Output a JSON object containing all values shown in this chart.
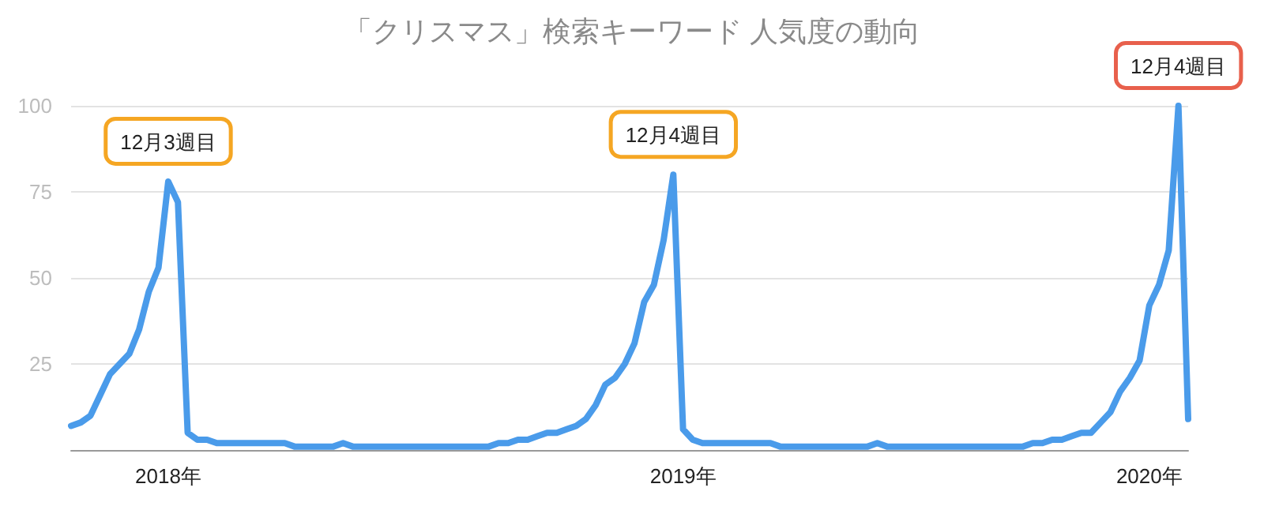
{
  "chart_data": {
    "type": "line",
    "title": "「クリスマス」検索キーワード 人気度の動向",
    "categories": [
      null,
      null,
      null,
      null,
      null,
      null,
      null,
      null,
      null,
      null,
      "2018年",
      null,
      null,
      null,
      null,
      null,
      null,
      null,
      null,
      null,
      null,
      null,
      null,
      null,
      null,
      null,
      null,
      null,
      null,
      null,
      null,
      null,
      null,
      null,
      null,
      null,
      null,
      null,
      null,
      null,
      null,
      null,
      null,
      null,
      null,
      null,
      null,
      null,
      null,
      null,
      null,
      null,
      null,
      null,
      null,
      null,
      null,
      null,
      null,
      null,
      null,
      null,
      null,
      "2019年",
      null,
      null,
      null,
      null,
      null,
      null,
      null,
      null,
      null,
      null,
      null,
      null,
      null,
      null,
      null,
      null,
      null,
      null,
      null,
      null,
      null,
      null,
      null,
      null,
      null,
      null,
      null,
      null,
      null,
      null,
      null,
      null,
      null,
      null,
      null,
      null,
      null,
      null,
      null,
      null,
      null,
      null,
      null,
      null,
      null,
      null,
      null,
      "2020年",
      null,
      null,
      null,
      null
    ],
    "series": [
      {
        "color": "#4a9bea",
        "values": [
          7,
          8,
          10,
          16,
          22,
          25,
          28,
          35,
          46,
          53,
          78,
          72,
          5,
          3,
          3,
          2,
          2,
          2,
          2,
          2,
          2,
          2,
          2,
          1,
          1,
          1,
          1,
          1,
          2,
          1,
          1,
          1,
          1,
          1,
          1,
          1,
          1,
          1,
          1,
          1,
          1,
          1,
          1,
          1,
          2,
          2,
          3,
          3,
          4,
          5,
          5,
          6,
          7,
          9,
          13,
          19,
          21,
          25,
          31,
          43,
          48,
          61,
          80,
          6,
          3,
          2,
          2,
          2,
          2,
          2,
          2,
          2,
          2,
          1,
          1,
          1,
          1,
          1,
          1,
          1,
          1,
          1,
          1,
          2,
          1,
          1,
          1,
          1,
          1,
          1,
          1,
          1,
          1,
          1,
          1,
          1,
          1,
          1,
          1,
          2,
          2,
          3,
          3,
          4,
          5,
          5,
          8,
          11,
          17,
          21,
          26,
          42,
          48,
          58,
          100,
          9
        ]
      }
    ],
    "ylim": [
      0,
      100
    ],
    "yticks": [
      25,
      50,
      75,
      100
    ],
    "grid": "y",
    "marker": "none",
    "line_style": "solid",
    "annotations": [
      {
        "text": "12月3週目",
        "y": 78
      },
      {
        "text": "12月4週目",
        "y": 80
      },
      {
        "text": "12月4週目",
        "y": 100
      }
    ]
  }
}
